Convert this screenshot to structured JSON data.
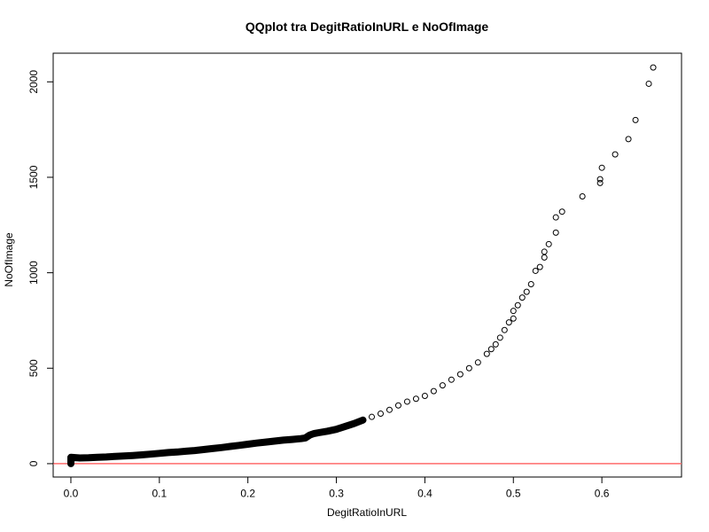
{
  "chart_data": {
    "type": "scatter",
    "title": "QQplot tra DegitRatioInURL e NoOfImage",
    "xlabel": "DegitRatioInURL",
    "ylabel": "NoOfImage",
    "xlim": [
      -0.02,
      0.69
    ],
    "ylim": [
      -70,
      2150
    ],
    "x_ticks": [
      0.0,
      0.1,
      0.2,
      0.3,
      0.4,
      0.5,
      0.6
    ],
    "x_tick_labels": [
      "0.0",
      "0.1",
      "0.2",
      "0.3",
      "0.4",
      "0.5",
      "0.6"
    ],
    "y_ticks": [
      0,
      500,
      1000,
      1500,
      2000
    ],
    "y_tick_labels": [
      "0",
      "500",
      "1000",
      "1500",
      "2000"
    ],
    "grid": false,
    "reference_line": {
      "y": 0,
      "color": "#ff6b6b"
    },
    "point_style": "open-circle",
    "points": [
      [
        0.0,
        0
      ],
      [
        0.0,
        8
      ],
      [
        0.0,
        15
      ],
      [
        0.0,
        22
      ],
      [
        0.0,
        28
      ],
      [
        0.0,
        33
      ],
      [
        0.01,
        30
      ],
      [
        0.02,
        31
      ],
      [
        0.03,
        33
      ],
      [
        0.04,
        35
      ],
      [
        0.05,
        38
      ],
      [
        0.06,
        40
      ],
      [
        0.07,
        43
      ],
      [
        0.08,
        46
      ],
      [
        0.09,
        50
      ],
      [
        0.1,
        54
      ],
      [
        0.11,
        58
      ],
      [
        0.12,
        61
      ],
      [
        0.13,
        65
      ],
      [
        0.14,
        69
      ],
      [
        0.15,
        74
      ],
      [
        0.16,
        79
      ],
      [
        0.17,
        84
      ],
      [
        0.18,
        90
      ],
      [
        0.19,
        96
      ],
      [
        0.2,
        102
      ],
      [
        0.21,
        108
      ],
      [
        0.22,
        113
      ],
      [
        0.23,
        118
      ],
      [
        0.24,
        123
      ],
      [
        0.25,
        127
      ],
      [
        0.26,
        131
      ],
      [
        0.265,
        135
      ],
      [
        0.27,
        150
      ],
      [
        0.275,
        158
      ],
      [
        0.28,
        162
      ],
      [
        0.29,
        170
      ],
      [
        0.3,
        180
      ],
      [
        0.31,
        195
      ],
      [
        0.32,
        210
      ],
      [
        0.33,
        228
      ],
      [
        0.34,
        245
      ],
      [
        0.35,
        262
      ],
      [
        0.36,
        282
      ],
      [
        0.37,
        305
      ],
      [
        0.38,
        325
      ],
      [
        0.39,
        340
      ],
      [
        0.4,
        355
      ],
      [
        0.41,
        380
      ],
      [
        0.42,
        410
      ],
      [
        0.43,
        440
      ],
      [
        0.44,
        468
      ],
      [
        0.45,
        500
      ],
      [
        0.46,
        530
      ],
      [
        0.47,
        575
      ],
      [
        0.475,
        600
      ],
      [
        0.48,
        625
      ],
      [
        0.485,
        660
      ],
      [
        0.49,
        700
      ],
      [
        0.495,
        740
      ],
      [
        0.5,
        760
      ],
      [
        0.5,
        800
      ],
      [
        0.505,
        830
      ],
      [
        0.51,
        870
      ],
      [
        0.515,
        900
      ],
      [
        0.52,
        940
      ],
      [
        0.525,
        1010
      ],
      [
        0.53,
        1030
      ],
      [
        0.535,
        1080
      ],
      [
        0.535,
        1110
      ],
      [
        0.54,
        1150
      ],
      [
        0.548,
        1210
      ],
      [
        0.548,
        1290
      ],
      [
        0.555,
        1320
      ],
      [
        0.578,
        1400
      ],
      [
        0.598,
        1470
      ],
      [
        0.598,
        1490
      ],
      [
        0.6,
        1550
      ],
      [
        0.615,
        1620
      ],
      [
        0.63,
        1700
      ],
      [
        0.638,
        1800
      ],
      [
        0.653,
        1990
      ],
      [
        0.658,
        2075
      ]
    ]
  }
}
